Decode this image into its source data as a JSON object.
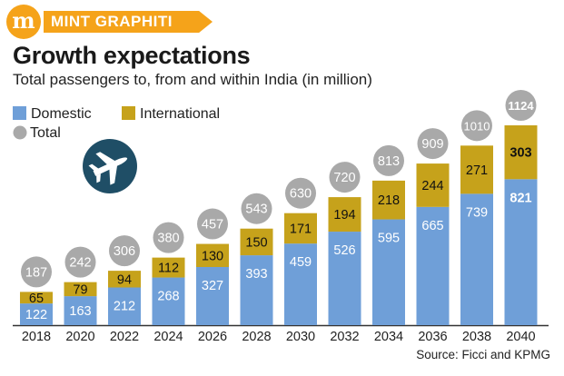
{
  "brand": {
    "logo_letter": "m",
    "label": "MINT GRAPHITI"
  },
  "header": {
    "title": "Growth expectations",
    "subtitle": "Total passengers to, from and within India (in million)"
  },
  "source": "Source: Ficci and KPMG",
  "colors": {
    "domestic": "#6f9fd8",
    "international": "#c6a21b",
    "total_bubble": "#a9a9a9",
    "axis": "#333333",
    "icon_circle": "#1f4e66",
    "brand": "#f5a31a"
  },
  "icons": {
    "plane": "airplane-icon"
  },
  "chart_data": {
    "type": "bar",
    "stacked": true,
    "categories": [
      "2018",
      "2020",
      "2022",
      "2024",
      "2026",
      "2028",
      "2030",
      "2032",
      "2034",
      "2036",
      "2038",
      "2040"
    ],
    "series": [
      {
        "name": "Domestic",
        "values": [
          122,
          163,
          212,
          268,
          327,
          393,
          459,
          526,
          595,
          665,
          739,
          821
        ]
      },
      {
        "name": "International",
        "values": [
          65,
          79,
          94,
          112,
          130,
          150,
          171,
          194,
          218,
          244,
          271,
          303
        ]
      }
    ],
    "totals": {
      "name": "Total",
      "values": [
        187,
        242,
        306,
        380,
        457,
        543,
        630,
        720,
        813,
        909,
        1010,
        1124
      ]
    },
    "legend": [
      "Domestic",
      "International",
      "Total"
    ],
    "legend_position": "top-left",
    "title": "Growth expectations",
    "xlabel": "",
    "ylabel": "",
    "ylim": [
      0,
      1124
    ],
    "grid": false
  }
}
